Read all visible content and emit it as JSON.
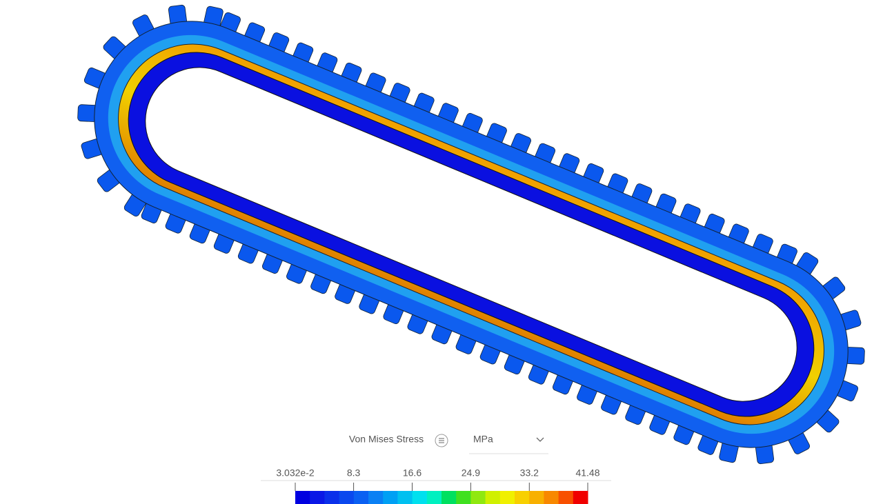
{
  "legend": {
    "title": "Von Mises Stress",
    "unit": "MPa",
    "ticks": [
      {
        "value": 0.03032,
        "label": "3.032e-2"
      },
      8.3,
      16.6,
      24.9,
      33.2,
      41.48
    ],
    "colors": [
      "#0000e0",
      "#0a18e6",
      "#0a30ea",
      "#0a48ee",
      "#0a60f2",
      "#0a80f4",
      "#00a0f4",
      "#00c0f0",
      "#00e0ee",
      "#00f0c0",
      "#00e060",
      "#40e020",
      "#90e810",
      "#d0f000",
      "#f0f000",
      "#f8d000",
      "#f8b000",
      "#f88800",
      "#f85000",
      "#f00000"
    ]
  }
}
